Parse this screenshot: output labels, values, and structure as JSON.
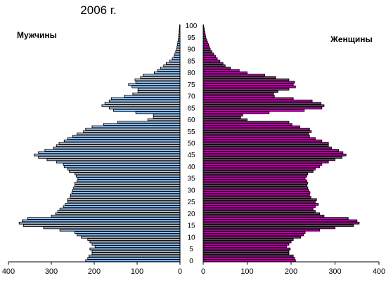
{
  "chart_data": {
    "type": "bar",
    "orientation": "horizontal",
    "title": "2006 г.",
    "series": [
      {
        "name": "Мужчины",
        "color": "#a6caf0",
        "values": [
          220,
          215,
          212,
          205,
          205,
          210,
          198,
          205,
          210,
          215,
          230,
          240,
          245,
          280,
          318,
          365,
          375,
          368,
          355,
          300,
          290,
          285,
          280,
          272,
          268,
          262,
          262,
          256,
          255,
          252,
          250,
          248,
          245,
          245,
          240,
          238,
          242,
          245,
          258,
          262,
          270,
          272,
          288,
          310,
          330,
          340,
          330,
          315,
          295,
          288,
          282,
          270,
          262,
          250,
          240,
          225,
          220,
          205,
          178,
          145,
          75,
          62,
          62,
          103,
          155,
          165,
          182,
          175,
          165,
          160,
          130,
          110,
          98,
          98,
          112,
          120,
          103,
          105,
          92,
          86,
          60,
          52,
          45,
          38,
          32,
          24,
          18,
          14,
          12,
          10,
          8,
          7,
          6,
          5,
          4,
          3,
          3,
          2,
          2,
          1,
          1
        ]
      },
      {
        "name": "Женщины",
        "color": "#a51696",
        "values": [
          210,
          208,
          205,
          195,
          195,
          198,
          190,
          195,
          200,
          205,
          222,
          228,
          232,
          265,
          300,
          342,
          355,
          350,
          330,
          275,
          265,
          255,
          250,
          255,
          262,
          255,
          258,
          245,
          242,
          243,
          240,
          238,
          236,
          238,
          236,
          232,
          236,
          238,
          250,
          255,
          265,
          270,
          285,
          300,
          316,
          325,
          318,
          308,
          292,
          285,
          285,
          270,
          255,
          242,
          240,
          246,
          242,
          220,
          202,
          195,
          100,
          85,
          90,
          150,
          230,
          270,
          275,
          268,
          248,
          205,
          162,
          160,
          170,
          195,
          210,
          205,
          208,
          195,
          165,
          140,
          100,
          82,
          62,
          50,
          45,
          38,
          32,
          28,
          24,
          20,
          16,
          14,
          12,
          10,
          8,
          6,
          5,
          4,
          3,
          2,
          1
        ]
      }
    ],
    "age_ticks": [
      0,
      5,
      10,
      15,
      20,
      25,
      30,
      35,
      40,
      45,
      50,
      55,
      60,
      65,
      70,
      75,
      80,
      85,
      90,
      95,
      100
    ],
    "male_axis_ticks": [
      400,
      300,
      200,
      100,
      0
    ],
    "female_axis_ticks": [
      0,
      100,
      200,
      300,
      400
    ],
    "xlim_male": [
      400,
      0
    ],
    "xlim_female": [
      0,
      400
    ],
    "ylim": [
      0,
      100
    ],
    "grid": false
  }
}
